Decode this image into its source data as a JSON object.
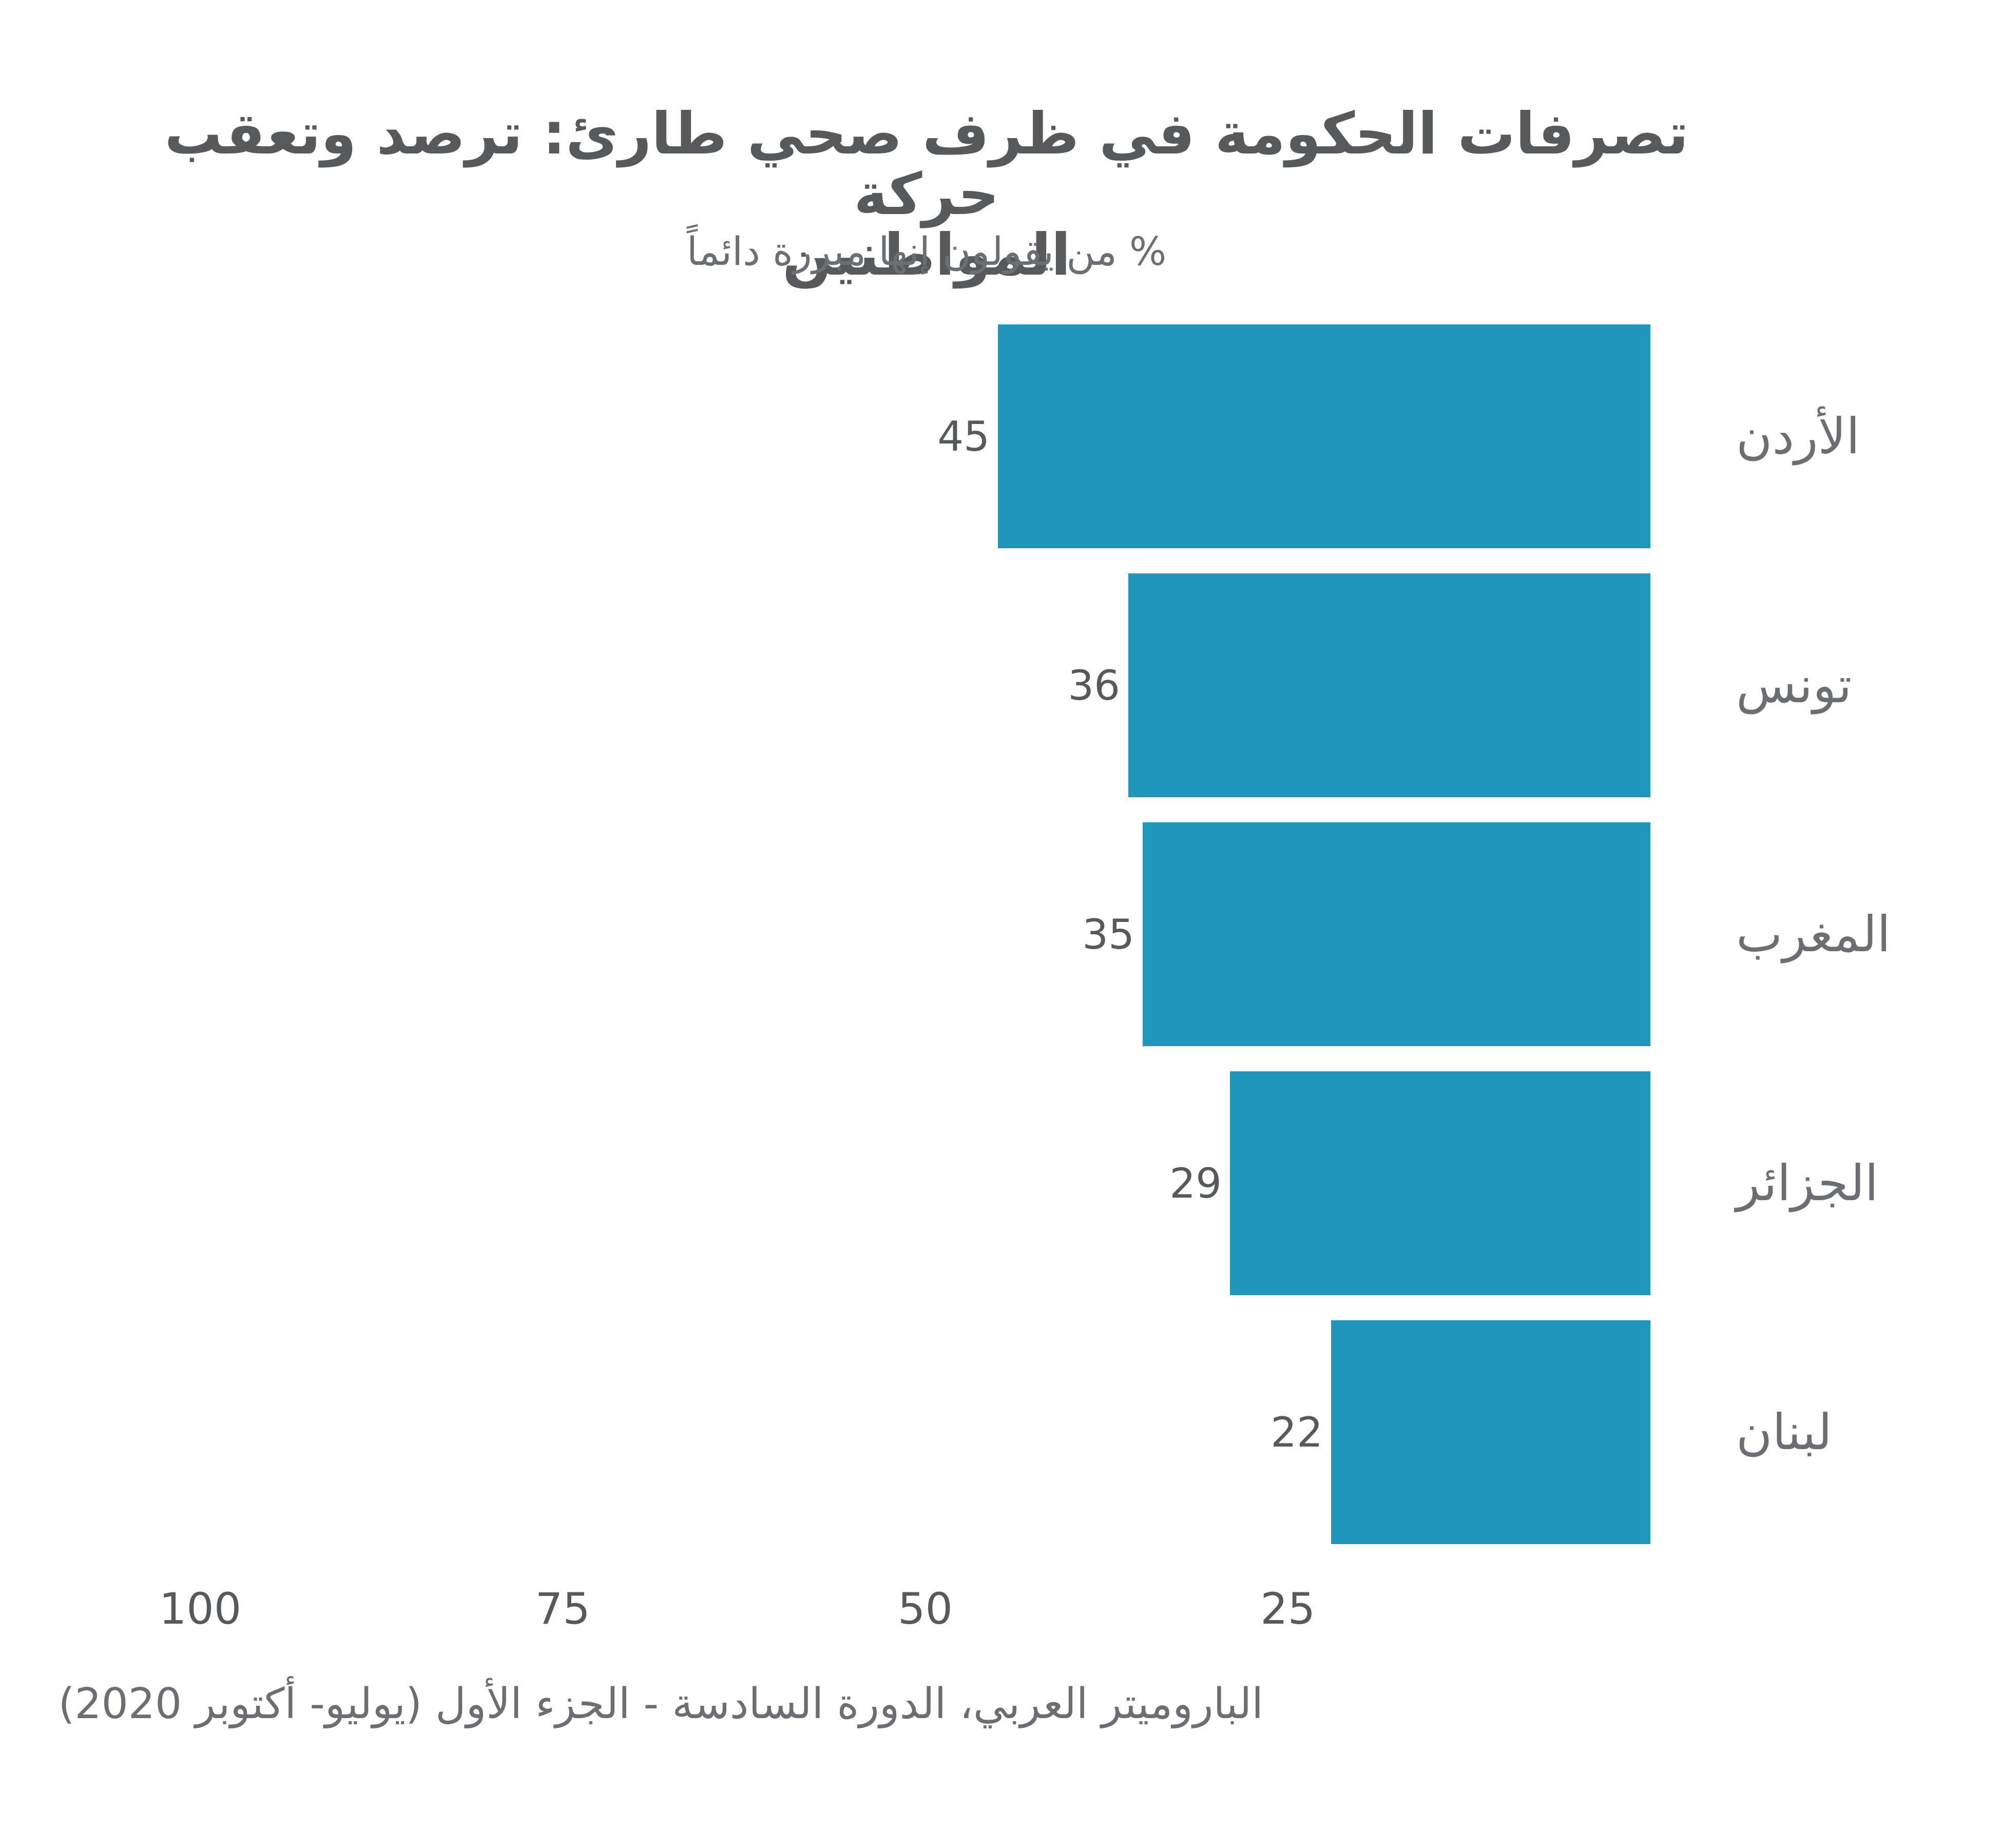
{
  "title": {
    "line1": "تصرفات الحكومة في ظرف صحي طارئ: ترصد وتعقب حركة",
    "line2": "المواطنين",
    "subtitle": "% من يقولون إنها مبررة دائماً"
  },
  "source": {
    "text": "الباروميتر العربي، الدورة السادسة - الجزء الأول (يوليو- أكتوبر 2020)"
  },
  "colors": {
    "bar": "#2196bd",
    "title_text": "#58595b",
    "value_text": "#58595b",
    "axis_text": "#58595b",
    "label_text": "#6d6e71",
    "background": "#ffffff"
  },
  "chart_data": {
    "type": "bar",
    "orientation": "horizontal",
    "value_axis_direction": "rtl-reversed (0 at right, 100 at left)",
    "title": "تصرفات الحكومة في ظرف صحي طارئ: ترصد وتعقب حركة المواطنين",
    "subtitle": "% من يقولون إنها مبررة دائماً",
    "categories": [
      "الأردن",
      "تونس",
      "المغرب",
      "الجزائر",
      "لبنان"
    ],
    "values": [
      45,
      36,
      35,
      29,
      22
    ],
    "xticks": [
      100,
      75,
      50,
      25
    ],
    "xlim": [
      0,
      100
    ],
    "xlabel": "",
    "ylabel": "",
    "grid": false,
    "legend": false,
    "bar_color": "#2196bd",
    "source": "الباروميتر العربي، الدورة السادسة - الجزء الأول (يوليو- أكتوبر 2020)"
  }
}
